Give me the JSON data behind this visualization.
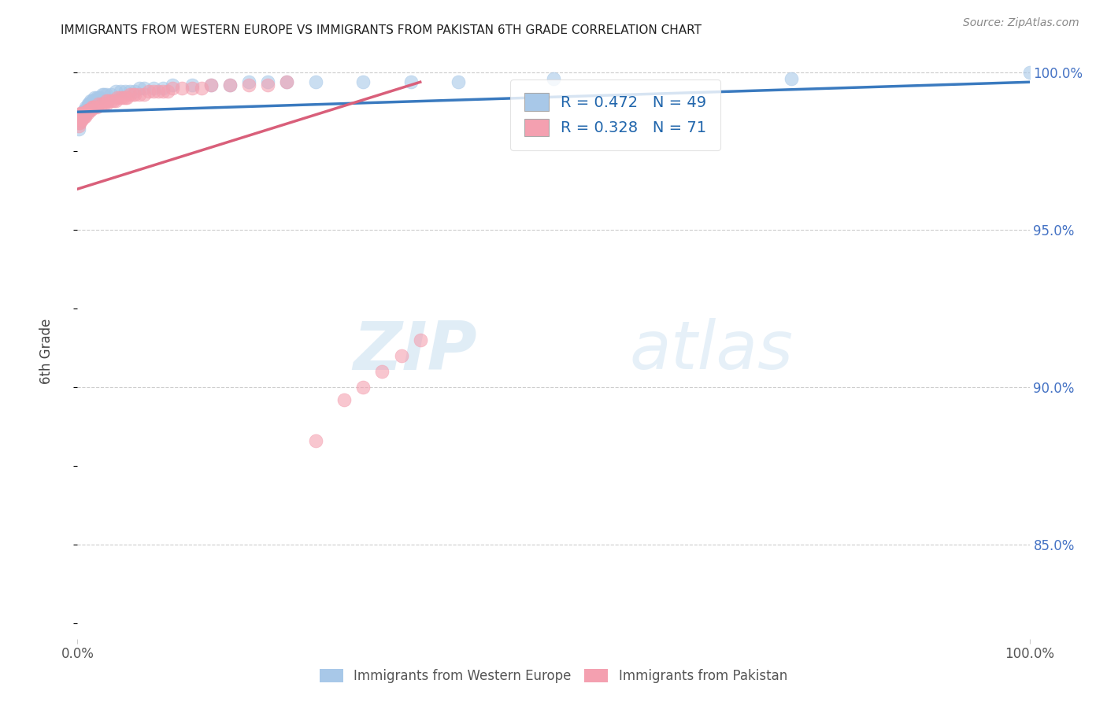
{
  "title": "IMMIGRANTS FROM WESTERN EUROPE VS IMMIGRANTS FROM PAKISTAN 6TH GRADE CORRELATION CHART",
  "source": "Source: ZipAtlas.com",
  "ylabel": "6th Grade",
  "blue_R": 0.472,
  "blue_N": 49,
  "pink_R": 0.328,
  "pink_N": 71,
  "blue_color": "#a8c8e8",
  "pink_color": "#f4a0b0",
  "blue_line_color": "#3a7abf",
  "pink_line_color": "#d95f7a",
  "legend_text_color": "#2166ac",
  "watermark_zip": "ZIP",
  "watermark_atlas": "atlas",
  "background_color": "#ffffff",
  "blue_x": [
    0.001,
    0.002,
    0.003,
    0.004,
    0.005,
    0.005,
    0.006,
    0.007,
    0.008,
    0.009,
    0.01,
    0.011,
    0.012,
    0.013,
    0.014,
    0.015,
    0.016,
    0.017,
    0.018,
    0.02,
    0.022,
    0.024,
    0.026,
    0.028,
    0.03,
    0.035,
    0.04,
    0.045,
    0.05,
    0.055,
    0.06,
    0.065,
    0.07,
    0.08,
    0.09,
    0.1,
    0.12,
    0.14,
    0.16,
    0.18,
    0.2,
    0.22,
    0.25,
    0.3,
    0.35,
    0.4,
    0.5,
    0.75,
    1.0
  ],
  "blue_y": [
    0.982,
    0.984,
    0.985,
    0.986,
    0.986,
    0.987,
    0.987,
    0.988,
    0.988,
    0.989,
    0.989,
    0.99,
    0.99,
    0.99,
    0.991,
    0.991,
    0.991,
    0.991,
    0.992,
    0.992,
    0.992,
    0.992,
    0.993,
    0.993,
    0.993,
    0.993,
    0.994,
    0.994,
    0.994,
    0.994,
    0.994,
    0.995,
    0.995,
    0.995,
    0.995,
    0.996,
    0.996,
    0.996,
    0.996,
    0.997,
    0.997,
    0.997,
    0.997,
    0.997,
    0.997,
    0.997,
    0.998,
    0.998,
    1.0
  ],
  "pink_x": [
    0.001,
    0.001,
    0.001,
    0.002,
    0.002,
    0.002,
    0.003,
    0.003,
    0.003,
    0.004,
    0.004,
    0.004,
    0.005,
    0.005,
    0.005,
    0.006,
    0.006,
    0.007,
    0.007,
    0.008,
    0.008,
    0.009,
    0.01,
    0.01,
    0.011,
    0.012,
    0.013,
    0.014,
    0.015,
    0.016,
    0.018,
    0.02,
    0.022,
    0.025,
    0.028,
    0.03,
    0.03,
    0.032,
    0.035,
    0.038,
    0.04,
    0.042,
    0.045,
    0.048,
    0.05,
    0.052,
    0.055,
    0.058,
    0.06,
    0.065,
    0.07,
    0.075,
    0.08,
    0.085,
    0.09,
    0.095,
    0.1,
    0.11,
    0.12,
    0.13,
    0.14,
    0.16,
    0.18,
    0.2,
    0.22,
    0.25,
    0.28,
    0.3,
    0.32,
    0.34,
    0.36
  ],
  "pink_y": [
    0.983,
    0.984,
    0.985,
    0.984,
    0.985,
    0.986,
    0.985,
    0.986,
    0.987,
    0.985,
    0.986,
    0.987,
    0.985,
    0.986,
    0.987,
    0.986,
    0.987,
    0.986,
    0.987,
    0.986,
    0.987,
    0.987,
    0.987,
    0.988,
    0.988,
    0.988,
    0.988,
    0.988,
    0.989,
    0.989,
    0.989,
    0.989,
    0.99,
    0.99,
    0.99,
    0.99,
    0.991,
    0.991,
    0.991,
    0.991,
    0.991,
    0.992,
    0.992,
    0.992,
    0.992,
    0.992,
    0.993,
    0.993,
    0.993,
    0.993,
    0.993,
    0.994,
    0.994,
    0.994,
    0.994,
    0.994,
    0.995,
    0.995,
    0.995,
    0.995,
    0.996,
    0.996,
    0.996,
    0.996,
    0.997,
    0.883,
    0.896,
    0.9,
    0.905,
    0.91,
    0.915
  ],
  "xlim": [
    0.0,
    1.0
  ],
  "ylim": [
    0.82,
    1.003
  ],
  "ytick_vals": [
    1.0,
    0.95,
    0.9,
    0.85
  ],
  "ytick_labels": [
    "100.0%",
    "95.0%",
    "90.0%",
    "85.0%"
  ],
  "xtick_vals": [
    0.0,
    1.0
  ],
  "xtick_labels": [
    "0.0%",
    "100.0%"
  ]
}
